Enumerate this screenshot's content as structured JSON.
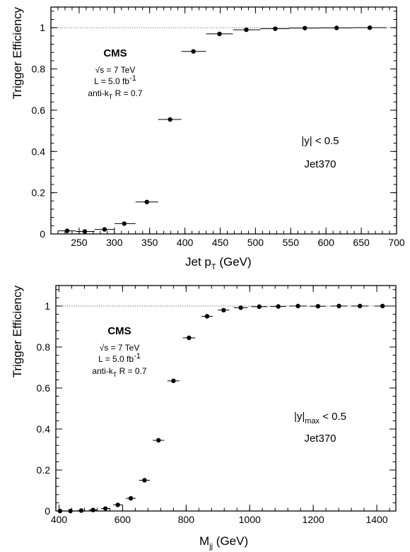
{
  "chart_data": [
    {
      "type": "scatter",
      "ylabel": "Trigger Efficiency",
      "xlabel": {
        "main": "Jet p",
        "sub": "T",
        "unit": " (GeV)"
      },
      "xlim": [
        210,
        700
      ],
      "ylim": [
        0,
        1.1
      ],
      "xticks": [
        250,
        300,
        350,
        400,
        450,
        500,
        550,
        600,
        650,
        700
      ],
      "yticks": [
        0,
        0.2,
        0.4,
        0.6,
        0.8,
        1
      ],
      "reference_line_y": 1,
      "annotations": {
        "cms": "CMS",
        "sqrt_s": "√s = 7 TeV",
        "lumi": {
          "main": "L = 5.0 fb",
          "sup": "-1"
        },
        "algo": {
          "main": "anti-k",
          "sub": "T",
          "rest": " R = 0.7"
        },
        "rapidity": {
          "main": "|y| < 0.5",
          "sub": "",
          "rest": ""
        },
        "trigger": "Jet370"
      },
      "points": [
        {
          "x": 233,
          "xlo": 220,
          "xhi": 245,
          "y": 0.015
        },
        {
          "x": 258,
          "xlo": 245,
          "xhi": 272,
          "y": 0.012
        },
        {
          "x": 286,
          "xlo": 272,
          "xhi": 300,
          "y": 0.022
        },
        {
          "x": 314,
          "xlo": 300,
          "xhi": 330,
          "y": 0.05
        },
        {
          "x": 346,
          "xlo": 330,
          "xhi": 362,
          "y": 0.155
        },
        {
          "x": 379,
          "xlo": 362,
          "xhi": 395,
          "y": 0.555
        },
        {
          "x": 412,
          "xlo": 395,
          "xhi": 430,
          "y": 0.885
        },
        {
          "x": 449,
          "xlo": 430,
          "xhi": 468,
          "y": 0.97
        },
        {
          "x": 487,
          "xlo": 468,
          "xhi": 507,
          "y": 0.99
        },
        {
          "x": 528,
          "xlo": 507,
          "xhi": 548,
          "y": 0.995
        },
        {
          "x": 570,
          "xlo": 548,
          "xhi": 592,
          "y": 0.998
        },
        {
          "x": 615,
          "xlo": 592,
          "xhi": 638,
          "y": 0.999
        },
        {
          "x": 662,
          "xlo": 638,
          "xhi": 686,
          "y": 1.0
        }
      ]
    },
    {
      "type": "scatter",
      "ylabel": "Trigger Efficiency",
      "xlabel": {
        "main": "M",
        "sub": "jj",
        "unit": " (GeV)"
      },
      "xlim": [
        390,
        1460
      ],
      "ylim": [
        0,
        1.1
      ],
      "xticks": [
        400,
        600,
        800,
        1000,
        1200,
        1400
      ],
      "yticks": [
        0,
        0.2,
        0.4,
        0.6,
        0.8,
        1
      ],
      "reference_line_y": 1,
      "annotations": {
        "cms": "CMS",
        "sqrt_s": "√s = 7 TeV",
        "lumi": {
          "main": "L = 5.0 fb",
          "sup": "-1"
        },
        "algo": {
          "main": "anti-k",
          "sub": "T",
          "rest": " R = 0.7"
        },
        "rapidity": {
          "main": "|y|",
          "sub": "max",
          "rest": " < 0.5"
        },
        "trigger": "Jet370"
      },
      "points": [
        {
          "x": 403,
          "xlo": 394,
          "xhi": 412,
          "y": 0.0
        },
        {
          "x": 436,
          "xlo": 425,
          "xhi": 447,
          "y": 0.0
        },
        {
          "x": 470,
          "xlo": 458,
          "xhi": 482,
          "y": 0.002
        },
        {
          "x": 507,
          "xlo": 494,
          "xhi": 520,
          "y": 0.005
        },
        {
          "x": 546,
          "xlo": 532,
          "xhi": 560,
          "y": 0.012
        },
        {
          "x": 585,
          "xlo": 570,
          "xhi": 600,
          "y": 0.03
        },
        {
          "x": 626,
          "xlo": 610,
          "xhi": 642,
          "y": 0.062
        },
        {
          "x": 669,
          "xlo": 652,
          "xhi": 686,
          "y": 0.15
        },
        {
          "x": 713,
          "xlo": 695,
          "xhi": 731,
          "y": 0.345
        },
        {
          "x": 760,
          "xlo": 741,
          "xhi": 779,
          "y": 0.635
        },
        {
          "x": 809,
          "xlo": 789,
          "xhi": 829,
          "y": 0.845
        },
        {
          "x": 866,
          "xlo": 848,
          "xhi": 884,
          "y": 0.95
        },
        {
          "x": 918,
          "xlo": 900,
          "xhi": 936,
          "y": 0.98
        },
        {
          "x": 972,
          "xlo": 950,
          "xhi": 994,
          "y": 0.992
        },
        {
          "x": 1030,
          "xlo": 1005,
          "xhi": 1055,
          "y": 0.997
        },
        {
          "x": 1090,
          "xlo": 1065,
          "xhi": 1115,
          "y": 0.998
        },
        {
          "x": 1152,
          "xlo": 1125,
          "xhi": 1179,
          "y": 1.0
        },
        {
          "x": 1215,
          "xlo": 1190,
          "xhi": 1240,
          "y": 0.999
        },
        {
          "x": 1281,
          "xlo": 1255,
          "xhi": 1307,
          "y": 1.0
        },
        {
          "x": 1347,
          "xlo": 1320,
          "xhi": 1374,
          "y": 1.0
        },
        {
          "x": 1418,
          "xlo": 1392,
          "xhi": 1444,
          "y": 1.0
        }
      ]
    }
  ]
}
